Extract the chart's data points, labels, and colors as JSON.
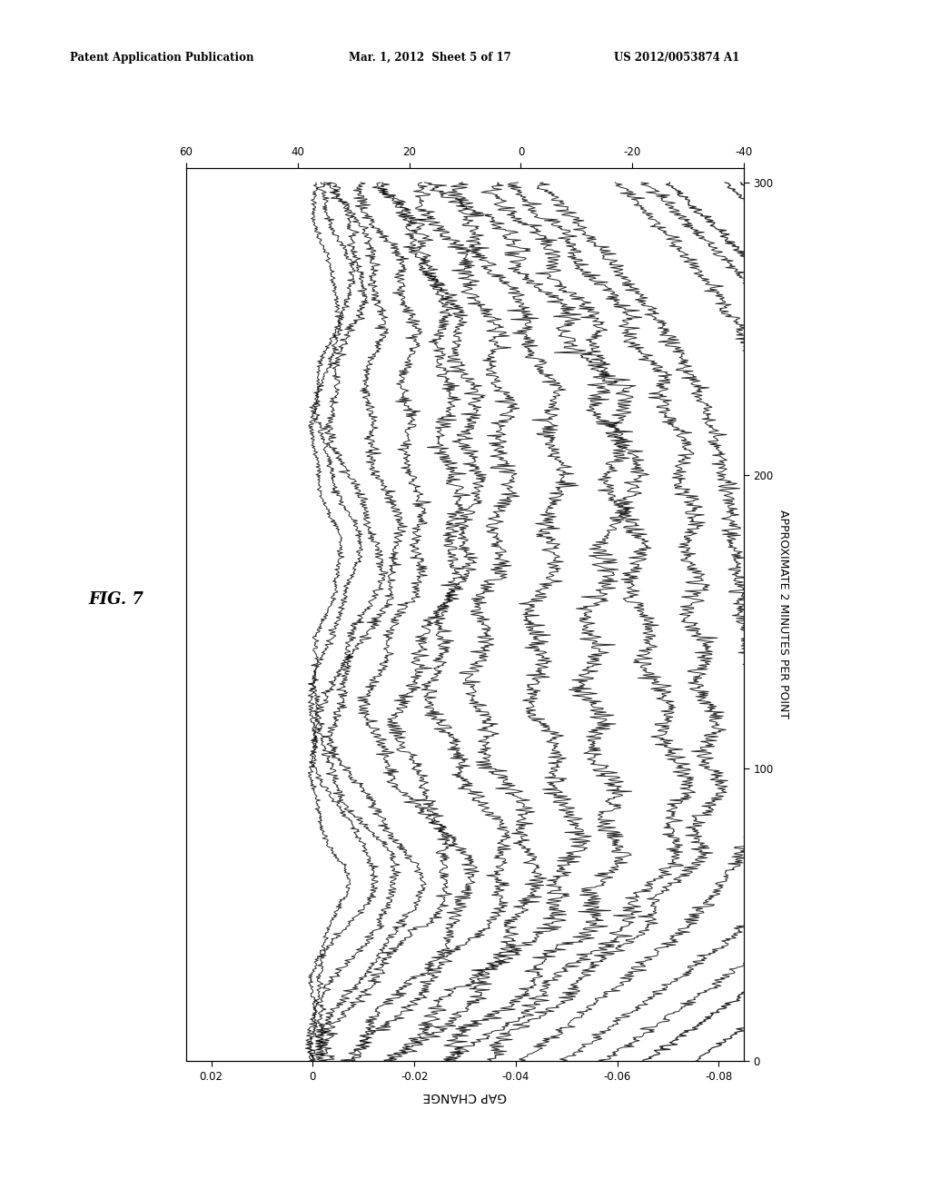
{
  "header_left": "Patent Application Publication",
  "header_mid": "Mar. 1, 2012  Sheet 5 of 17",
  "header_right": "US 2012/0053874 A1",
  "fig_label": "FIG. 7",
  "xlabel": "GAP CHANGE",
  "ylabel": "APPROXIMATE 2 MINUTES PER POINT",
  "x_ticks": [
    0.02,
    0.0,
    -0.02,
    -0.04,
    -0.06,
    -0.08
  ],
  "x_tick_labels": [
    "0.02",
    "0",
    "-0.02",
    "-0.04",
    "-0.06",
    "-0.08"
  ],
  "y_ticks": [
    0,
    100,
    200,
    300
  ],
  "x_top_ticks": [
    60,
    40,
    20,
    0,
    -20,
    -40
  ],
  "n_curves": 18,
  "background_color": "#ffffff",
  "line_color": "#000000",
  "line_alpha": 0.85,
  "line_width": 0.7,
  "xlim_lo": 0.025,
  "xlim_hi": -0.085,
  "ylim_lo": 0,
  "ylim_hi": 305
}
